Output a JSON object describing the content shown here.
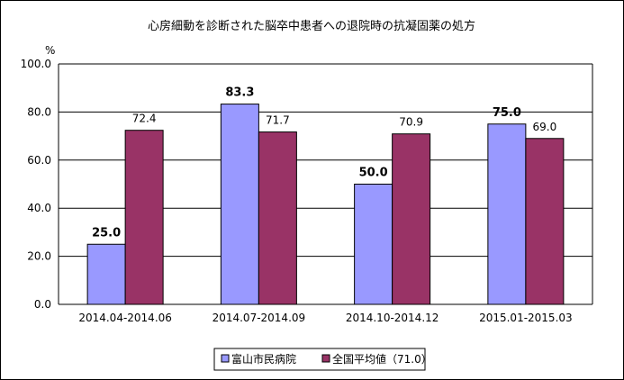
{
  "chart_data": {
    "type": "bar",
    "title": "心房細動を診断された脳卒中患者への退院時の抗凝固薬の処方",
    "ylabel": "%",
    "ylim": [
      0,
      100
    ],
    "yticks": [
      "0.0",
      "20.0",
      "40.0",
      "60.0",
      "80.0",
      "100.0"
    ],
    "grid": true,
    "legend_position": "bottom",
    "categories": [
      "2014.04-2014.06",
      "2014.07-2014.09",
      "2014.10-2014.12",
      "2015.01-2015.03"
    ],
    "series": [
      {
        "name": "富山市民病院",
        "values": [
          25.0,
          83.3,
          50.0,
          75.0
        ],
        "labels": [
          "25.0",
          "83.3",
          "50.0",
          "75.0"
        ],
        "color": "#9999ff"
      },
      {
        "name": "全国平均値（71.0）",
        "values": [
          72.4,
          71.7,
          70.9,
          69.0
        ],
        "labels": [
          "72.4",
          "71.7",
          "70.9",
          "69.0"
        ],
        "color": "#993366"
      }
    ]
  }
}
